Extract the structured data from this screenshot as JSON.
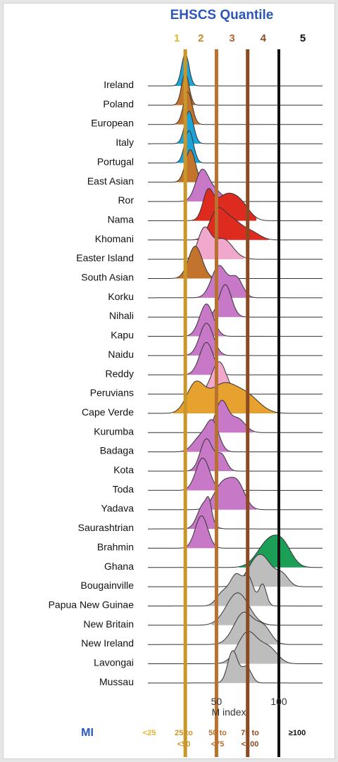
{
  "chart_data": {
    "type": "ridgeline",
    "title": "EHSCS Quantile",
    "xlabel": "M index",
    "xlim": [
      -5,
      135
    ],
    "xticks": [
      50,
      100
    ],
    "quantile_numbers": [
      "1",
      "2",
      "3",
      "4",
      "5"
    ],
    "quantile_lines": [
      {
        "x": 25,
        "color": "#c9962a"
      },
      {
        "x": 50,
        "color": "#b8712f"
      },
      {
        "x": 75,
        "color": "#8c4a22"
      },
      {
        "x": 100,
        "color": "#111111"
      }
    ],
    "quantile_label_colors": [
      "#e3b52e",
      "#c28a2b",
      "#b5652e",
      "#8c4a22",
      "#111111"
    ],
    "mi_label": "MI",
    "mi_ranges": [
      {
        "lines": [
          "<25"
        ],
        "color": "#e3b52e"
      },
      {
        "lines": [
          "25 to",
          "<50"
        ],
        "color": "#c9962a"
      },
      {
        "lines": [
          "50 to",
          "<75"
        ],
        "color": "#b8712f"
      },
      {
        "lines": [
          "75 to",
          "<100"
        ],
        "color": "#8c4a22"
      },
      {
        "lines": [
          "≥100"
        ],
        "color": "#111111"
      }
    ],
    "series": [
      {
        "name": "Ireland",
        "color": "#1ea3d6",
        "fill_range": [
          7,
          33
        ],
        "peaks": [
          [
            25,
            3.0,
            1.0
          ]
        ]
      },
      {
        "name": "Poland",
        "color": "#c2742c",
        "fill_range": [
          7,
          33
        ],
        "peaks": [
          [
            25,
            3.0,
            1.0
          ]
        ]
      },
      {
        "name": "European",
        "color": "#c2742c",
        "fill_range": [
          10,
          40
        ],
        "peaks": [
          [
            27,
            3.5,
            1.0
          ]
        ]
      },
      {
        "name": "Italy",
        "color": "#1ea3d6",
        "fill_range": [
          12,
          40
        ],
        "peaks": [
          [
            28,
            3.5,
            1.0
          ]
        ]
      },
      {
        "name": "Portugal",
        "color": "#1ea3d6",
        "fill_range": [
          12,
          40
        ],
        "peaks": [
          [
            28,
            3.5,
            1.0
          ]
        ]
      },
      {
        "name": "East Asian",
        "color": "#c2742c",
        "fill_range": [
          12,
          42
        ],
        "peaks": [
          [
            29,
            4.0,
            1.0
          ]
        ]
      },
      {
        "name": "Ror",
        "color": "#c779c7",
        "fill_range": [
          26,
          58
        ],
        "peaks": [
          [
            38,
            5.0,
            0.9
          ],
          [
            47,
            7.0,
            0.4
          ]
        ]
      },
      {
        "name": "Nama",
        "color": "#dd2b1f",
        "fill_range": [
          30,
          82
        ],
        "peaks": [
          [
            43,
            4.0,
            0.6
          ],
          [
            57,
            9.0,
            0.6
          ],
          [
            70,
            7.0,
            0.3
          ]
        ]
      },
      {
        "name": "Khomani",
        "color": "#dd2b1f",
        "fill_range": [
          30,
          92
        ],
        "peaks": [
          [
            50,
            6.0,
            0.7
          ],
          [
            62,
            8.0,
            0.55
          ],
          [
            78,
            7.0,
            0.2
          ]
        ]
      },
      {
        "name": "Easter Island",
        "color": "#f0a8cc",
        "fill_range": [
          28,
          72
        ],
        "peaks": [
          [
            40,
            5.0,
            0.7
          ],
          [
            55,
            8.0,
            0.5
          ]
        ]
      },
      {
        "name": "South Asian",
        "color": "#c2742c",
        "fill_range": [
          18,
          50
        ],
        "peaks": [
          [
            33,
            5.5,
            1.0
          ]
        ]
      },
      {
        "name": "Korku",
        "color": "#c779c7",
        "fill_range": [
          30,
          80
        ],
        "peaks": [
          [
            52,
            6.0,
            0.9
          ],
          [
            66,
            5.0,
            0.55
          ]
        ]
      },
      {
        "name": "Nihali",
        "color": "#c779c7",
        "fill_range": [
          36,
          80
        ],
        "peaks": [
          [
            57,
            5.0,
            1.0
          ]
        ]
      },
      {
        "name": "Kapu",
        "color": "#c779c7",
        "fill_range": [
          26,
          62
        ],
        "peaks": [
          [
            42,
            5.5,
            1.0
          ]
        ]
      },
      {
        "name": "Naidu",
        "color": "#c779c7",
        "fill_range": [
          26,
          62
        ],
        "peaks": [
          [
            42,
            5.5,
            1.0
          ]
        ]
      },
      {
        "name": "Reddy",
        "color": "#c779c7",
        "fill_range": [
          26,
          62
        ],
        "peaks": [
          [
            42,
            5.5,
            1.0
          ]
        ]
      },
      {
        "name": "Peruvians",
        "color": "#f0a8cc",
        "fill_range": [
          36,
          66
        ],
        "peaks": [
          [
            52,
            6.0,
            1.0
          ]
        ]
      },
      {
        "name": "Cape Verde",
        "color": "#e6a12e",
        "fill_range": [
          15,
          105
        ],
        "peaks": [
          [
            33,
            7.0,
            0.45
          ],
          [
            55,
            11.0,
            0.45
          ],
          [
            75,
            10.0,
            0.25
          ]
        ]
      },
      {
        "name": "Kurumba",
        "color": "#c779c7",
        "fill_range": [
          40,
          80
        ],
        "peaks": [
          [
            54,
            5.0,
            1.0
          ],
          [
            67,
            6.0,
            0.45
          ]
        ]
      },
      {
        "name": "Badaga",
        "color": "#c779c7",
        "fill_range": [
          20,
          66
        ],
        "peaks": [
          [
            37,
            6.0,
            0.5
          ],
          [
            47,
            5.0,
            1.0
          ]
        ]
      },
      {
        "name": "Kota",
        "color": "#c779c7",
        "fill_range": [
          22,
          64
        ],
        "peaks": [
          [
            42,
            5.0,
            1.0
          ],
          [
            54,
            4.0,
            0.5
          ]
        ]
      },
      {
        "name": "Toda",
        "color": "#c779c7",
        "fill_range": [
          26,
          56
        ],
        "peaks": [
          [
            39,
            5.5,
            1.0
          ]
        ]
      },
      {
        "name": "Yadava",
        "color": "#c779c7",
        "fill_range": [
          36,
          82
        ],
        "peaks": [
          [
            55,
            7.0,
            0.6
          ],
          [
            67,
            6.0,
            0.55
          ]
        ]
      },
      {
        "name": "Saurashtrian",
        "color": "#c779c7",
        "fill_range": [
          22,
          62
        ],
        "peaks": [
          [
            40,
            5.0,
            0.8
          ],
          [
            44,
            2.0,
            0.4
          ]
        ]
      },
      {
        "name": "Brahmin",
        "color": "#c779c7",
        "fill_range": [
          26,
          52
        ],
        "peaks": [
          [
            38,
            5.0,
            1.0
          ]
        ]
      },
      {
        "name": "Ghana",
        "color": "#1b9e55",
        "fill_range": [
          68,
          130
        ],
        "peaks": [
          [
            92,
            9.0,
            0.7
          ],
          [
            104,
            7.0,
            0.45
          ]
        ]
      },
      {
        "name": "Bougainville",
        "color": "#bdbdbd",
        "fill_range": [
          62,
          124
        ],
        "peaks": [
          [
            85,
            9.0,
            0.8
          ],
          [
            103,
            5.0,
            0.25
          ]
        ]
      },
      {
        "name": "Papua New Guinae",
        "color": "#bdbdbd",
        "fill_range": [
          40,
          100
        ],
        "peaks": [
          [
            55,
            5.0,
            0.3
          ],
          [
            66,
            5.0,
            0.7
          ],
          [
            76,
            4.0,
            0.6
          ],
          [
            87,
            3.0,
            0.5
          ]
        ]
      },
      {
        "name": "New Britain",
        "color": "#bdbdbd",
        "fill_range": [
          46,
          102
        ],
        "peaks": [
          [
            67,
            9.0,
            1.0
          ]
        ]
      },
      {
        "name": "New Ireland",
        "color": "#bdbdbd",
        "fill_range": [
          48,
          110
        ],
        "peaks": [
          [
            72,
            8.0,
            0.9
          ],
          [
            88,
            6.0,
            0.45
          ]
        ]
      },
      {
        "name": "Lavongai",
        "color": "#bdbdbd",
        "fill_range": [
          48,
          112
        ],
        "peaks": [
          [
            75,
            8.0,
            0.95
          ],
          [
            92,
            7.0,
            0.45
          ]
        ]
      },
      {
        "name": "Mussau",
        "color": "#bdbdbd",
        "fill_range": [
          44,
          92
        ],
        "peaks": [
          [
            63,
            4.0,
            1.0
          ],
          [
            74,
            4.0,
            0.5
          ]
        ]
      }
    ]
  }
}
